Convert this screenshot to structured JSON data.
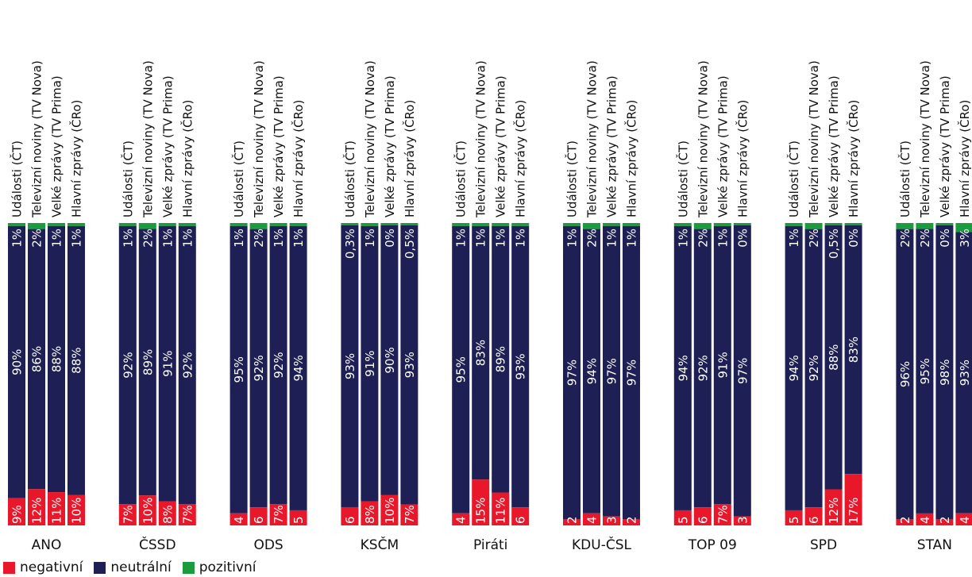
{
  "chart_data": {
    "type": "bar",
    "stacked": true,
    "normalized": true,
    "colors": {
      "negativni": "#e8182a",
      "neutralni": "#1e1f55",
      "pozitivni": "#1a9c3e"
    },
    "bar_labels": [
      "Události (ČT)",
      "Televizní noviny (TV Nova)",
      "Velké zprávy (TV Prima)",
      "Hlavní zprávy (ČRo)"
    ],
    "categories": [
      "ANO",
      "ČSSD",
      "ODS",
      "KSČM",
      "Piráti",
      "KDU-ČSL",
      "TOP 09",
      "SPD",
      "STAN"
    ],
    "series": [
      {
        "name": "negativní",
        "key": "negativni",
        "values": [
          [
            9,
            12,
            11,
            10
          ],
          [
            7,
            10,
            8,
            7
          ],
          [
            4,
            6,
            7,
            5
          ],
          [
            6,
            8,
            10,
            7
          ],
          [
            4,
            15,
            11,
            6
          ],
          [
            2,
            4,
            3,
            2
          ],
          [
            5,
            6,
            7,
            3
          ],
          [
            5,
            6,
            12,
            17
          ],
          [
            2,
            4,
            2,
            4
          ]
        ]
      },
      {
        "name": "neutrální",
        "key": "neutralni",
        "values": [
          [
            90,
            86,
            88,
            88
          ],
          [
            92,
            89,
            91,
            92
          ],
          [
            95,
            92,
            92,
            94
          ],
          [
            93,
            91,
            90,
            93
          ],
          [
            95,
            83,
            89,
            93
          ],
          [
            97,
            94,
            97,
            97
          ],
          [
            94,
            92,
            91,
            97
          ],
          [
            94,
            92,
            88,
            83
          ],
          [
            96,
            95,
            98,
            93
          ]
        ]
      },
      {
        "name": "pozitivní",
        "key": "pozitivni",
        "values": [
          [
            1,
            2,
            1,
            1
          ],
          [
            1,
            2,
            1,
            1
          ],
          [
            1,
            2,
            1,
            1
          ],
          [
            0.3,
            1,
            0,
            0.5
          ],
          [
            1,
            1,
            1,
            1
          ],
          [
            1,
            2,
            1,
            1
          ],
          [
            1,
            2,
            1,
            0
          ],
          [
            1,
            2,
            0.5,
            0
          ],
          [
            2,
            2,
            0,
            3
          ]
        ]
      }
    ],
    "value_labels": {
      "negativni": [
        [
          "9%",
          "12%",
          "11%",
          "10%"
        ],
        [
          "7%",
          "10%",
          "8%",
          "7%"
        ],
        [
          "4",
          "6",
          "7%",
          "5"
        ],
        [
          "6",
          "8%",
          "10%",
          "7%"
        ],
        [
          "4",
          "15%",
          "11%",
          "6"
        ],
        [
          "2",
          "4",
          "3",
          "2"
        ],
        [
          "5",
          "6",
          "7%",
          "3"
        ],
        [
          "5",
          "6",
          "12%",
          "17%"
        ],
        [
          "2",
          "4",
          "2",
          "4"
        ]
      ],
      "neutralni": [
        [
          "90%",
          "86%",
          "88%",
          "88%"
        ],
        [
          "92%",
          "89%",
          "91%",
          "92%"
        ],
        [
          "95%",
          "92%",
          "92%",
          "94%"
        ],
        [
          "93%",
          "91%",
          "90%",
          "93%"
        ],
        [
          "95%",
          "83%",
          "89%",
          "93%"
        ],
        [
          "97%",
          "94%",
          "97%",
          "97%"
        ],
        [
          "94%",
          "92%",
          "91%",
          "97%"
        ],
        [
          "94%",
          "92%",
          "88%",
          "83%"
        ],
        [
          "96%",
          "95%",
          "98%",
          "93%"
        ]
      ],
      "pozitivni": [
        [
          "1%",
          "2%",
          "1%",
          "1%"
        ],
        [
          "1%",
          "2%",
          "1%",
          "1%"
        ],
        [
          "1%",
          "2%",
          "1%",
          "1%"
        ],
        [
          "0,3%",
          "1%",
          "0%",
          "0,5%"
        ],
        [
          "1%",
          "1%",
          "1%",
          "1%"
        ],
        [
          "1%",
          "2%",
          "1%",
          "1%"
        ],
        [
          "1%",
          "2%",
          "1%",
          "0%"
        ],
        [
          "1%",
          "2%",
          "0,5%",
          "0%"
        ],
        [
          "2%",
          "2%",
          "0%",
          "3%"
        ]
      ]
    },
    "ylim": [
      0,
      100
    ],
    "grid": false,
    "legend_position": "bottom-left"
  },
  "legend": [
    {
      "key": "negativni",
      "label": "negativní"
    },
    {
      "key": "neutralni",
      "label": "neutrální"
    },
    {
      "key": "pozitivni",
      "label": "pozitivní"
    }
  ]
}
